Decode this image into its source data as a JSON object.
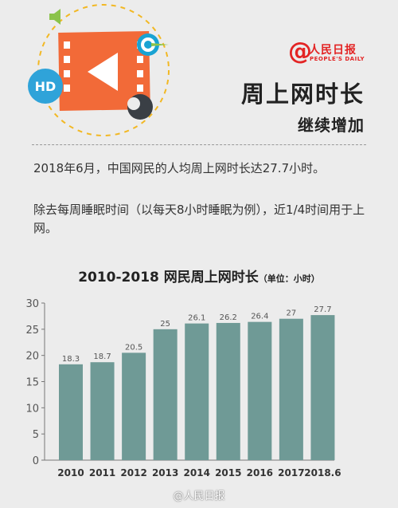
{
  "header": {
    "logo_mark": "@",
    "logo_name": "人民日报",
    "logo_english": "PEOPLE'S DAILY",
    "title": "周上网时长",
    "subtitle": "继续增加",
    "hd_badge": "HD",
    "icons": [
      "video-film-icon",
      "play-icon",
      "speaker-icon",
      "target-icon",
      "hd-badge-icon",
      "moon-icon"
    ]
  },
  "body": {
    "paragraph1": "2018年6月，中国网民的人均周上网时长达27.7小时。",
    "paragraph2": "除去每周睡眠时间（以每天8小时睡眠为例），近1/4时间用于上网。"
  },
  "chart_data": {
    "type": "bar",
    "title": "2010-2018 网民周上网时长",
    "unit_label": "（单位：小时）",
    "categories": [
      "2010",
      "2011",
      "2012",
      "2013",
      "2014",
      "2015",
      "2016",
      "2017",
      "2018.6"
    ],
    "values": [
      18.3,
      18.7,
      20.5,
      25,
      26.1,
      26.2,
      26.4,
      27,
      27.7
    ],
    "ylim": [
      0,
      30
    ],
    "yticks": [
      "0",
      "5",
      "10",
      "15",
      "20",
      "25",
      "30"
    ],
    "grid": false,
    "colors": {
      "bar": "#6f9a96",
      "axis": "#777777",
      "label": "#555555"
    }
  },
  "watermark": "@人民日报"
}
